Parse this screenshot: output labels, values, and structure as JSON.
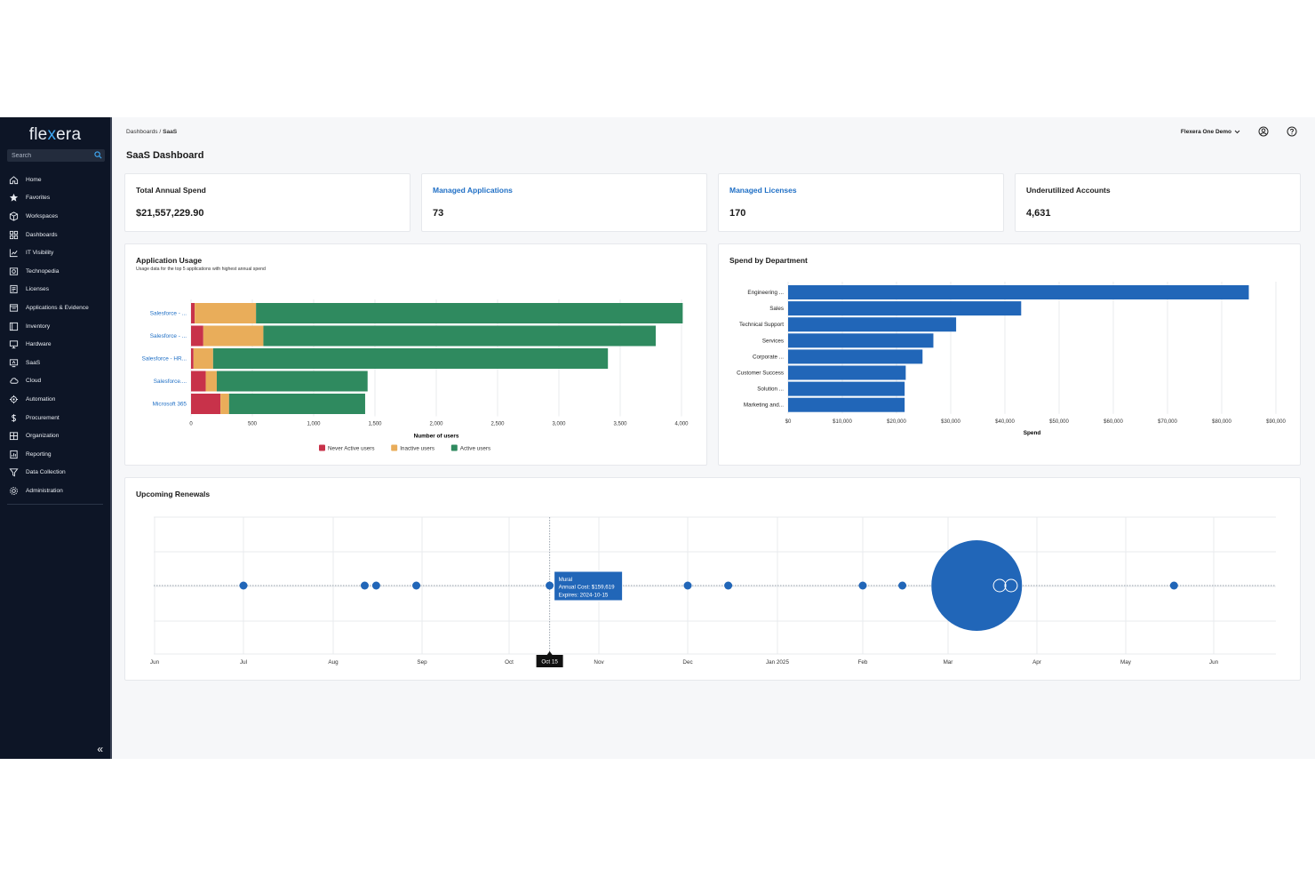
{
  "brand": {
    "logo_part1": "fle",
    "logo_part2": "x",
    "logo_part3": "era"
  },
  "search": {
    "placeholder": "Search"
  },
  "nav": [
    {
      "label": "Home",
      "icon": "home-icon"
    },
    {
      "label": "Favorites",
      "icon": "star-icon"
    },
    {
      "label": "Workspaces",
      "icon": "cube-icon"
    },
    {
      "label": "Dashboards",
      "icon": "grid-icon"
    },
    {
      "label": "IT Visibility",
      "icon": "chart-icon"
    },
    {
      "label": "Technopedia",
      "icon": "book-icon"
    },
    {
      "label": "Licenses",
      "icon": "license-icon"
    },
    {
      "label": "Applications & Evidence",
      "icon": "apps-icon"
    },
    {
      "label": "Inventory",
      "icon": "inventory-icon"
    },
    {
      "label": "Hardware",
      "icon": "hardware-icon"
    },
    {
      "label": "SaaS",
      "icon": "saas-icon"
    },
    {
      "label": "Cloud",
      "icon": "cloud-icon"
    },
    {
      "label": "Automation",
      "icon": "automation-icon"
    },
    {
      "label": "Procurement",
      "icon": "dollar-icon"
    },
    {
      "label": "Organization",
      "icon": "organization-icon"
    },
    {
      "label": "Reporting",
      "icon": "reporting-icon"
    },
    {
      "label": "Data Collection",
      "icon": "data-collection-icon"
    },
    {
      "label": "Administration",
      "icon": "gear-icon"
    }
  ],
  "breadcrumb": {
    "parent": "Dashboards",
    "separator": " / ",
    "current": "SaaS"
  },
  "page_title": "SaaS Dashboard",
  "account": {
    "name": "Flexera One Demo"
  },
  "kpis": [
    {
      "label": "Total Annual Spend",
      "value": "$21,557,229.90",
      "link": false
    },
    {
      "label": "Managed Applications",
      "value": "73",
      "link": true
    },
    {
      "label": "Managed Licenses",
      "value": "170",
      "link": true
    },
    {
      "label": "Underutilized Accounts",
      "value": "4,631",
      "link": false
    }
  ],
  "usage_card": {
    "title": "Application Usage",
    "subtitle": "Usage data for the top 5 applications with highest annual spend"
  },
  "spend_card": {
    "title": "Spend by Department"
  },
  "renewals_card": {
    "title": "Upcoming Renewals"
  },
  "colors": {
    "never": "#c8324a",
    "inactive": "#e9ad5a",
    "active": "#2f8a5f",
    "spend": "#2166b8",
    "renewal": "#2166b8"
  },
  "chart_data": [
    {
      "type": "bar",
      "orientation": "horizontal",
      "stacked": true,
      "categories": [
        "Salesforce - ...",
        "Salesforce - ...",
        "Salesforce - HR...",
        "Salesforce....",
        "Microsoft 365"
      ],
      "series": [
        {
          "name": "Never Active users",
          "values": [
            30,
            100,
            20,
            120,
            240
          ]
        },
        {
          "name": "Inactive users",
          "values": [
            500,
            490,
            160,
            90,
            70
          ]
        },
        {
          "name": "Active users",
          "values": [
            3480,
            3200,
            3220,
            1230,
            1110
          ]
        }
      ],
      "xlabel": "Number of users",
      "xlim": [
        0,
        4000
      ],
      "xticks": [
        "0",
        "500",
        "1,000",
        "1,500",
        "2,000",
        "2,500",
        "3,000",
        "3,500",
        "4,000"
      ],
      "legend": "bottom",
      "grid": true
    },
    {
      "type": "bar",
      "orientation": "horizontal",
      "categories": [
        "Engineering ...",
        "Sales",
        "Technical Support",
        "Services",
        "Corporate ...",
        "Customer Success",
        "Solution ...",
        "Marketing and..."
      ],
      "values": [
        85000,
        43000,
        31000,
        26800,
        24800,
        21700,
        21500,
        21500
      ],
      "xlabel": "Spend",
      "xlim": [
        0,
        90000
      ],
      "xticks": [
        "$0",
        "$10,000",
        "$20,000",
        "$30,000",
        "$40,000",
        "$50,000",
        "$60,000",
        "$70,000",
        "$80,000",
        "$90,000"
      ],
      "grid": true
    },
    {
      "type": "scatter",
      "x_axis": "date",
      "xticks": [
        "Jun",
        "Jul",
        "Aug",
        "Sep",
        "Oct",
        "Nov",
        "Dec",
        "Jan 2025",
        "Feb",
        "Mar",
        "Apr",
        "May",
        "Jun"
      ],
      "points": [
        {
          "date": "2024-07-01"
        },
        {
          "date": "2024-08-12"
        },
        {
          "date": "2024-08-16"
        },
        {
          "date": "2024-08-30"
        },
        {
          "date": "2024-10-15",
          "name": "Mural",
          "annual_cost": "$159,619"
        },
        {
          "date": "2024-12-01"
        },
        {
          "date": "2024-12-15"
        },
        {
          "date": "2025-02-01"
        },
        {
          "date": "2025-02-14"
        },
        {
          "date": "2025-03-11",
          "large": true
        },
        {
          "date": "2025-03-19",
          "hollow": true
        },
        {
          "date": "2025-03-23",
          "hollow": true
        },
        {
          "date": "2025-05-18"
        }
      ],
      "tooltip": {
        "line1": "Mural",
        "line2": "Annual Cost: $159,619",
        "line3": "Expires: 2024-10-15"
      },
      "crosshair_label": "Oct 15",
      "grid": true
    }
  ]
}
